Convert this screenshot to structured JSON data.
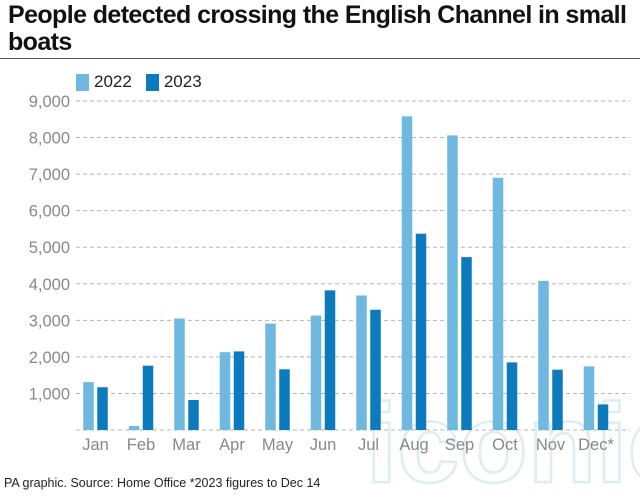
{
  "title": "People detected crossing the English Channel in small boats",
  "footer": "PA graphic. Source: Home Office *2023 figures to Dec 14",
  "watermark": "iconic",
  "colors": {
    "series_2022": "#6fb9e0",
    "series_2023": "#0b7bbd",
    "grid": "#b5b5b5",
    "axis_text": "#888888"
  },
  "chart_data": {
    "type": "bar",
    "categories": [
      "Jan",
      "Feb",
      "Mar",
      "Apr",
      "May",
      "Jun",
      "Jul",
      "Aug",
      "Sep",
      "Oct",
      "Nov",
      "Dec*"
    ],
    "series": [
      {
        "name": "2022",
        "values": [
          1310,
          110,
          3050,
          2130,
          2910,
          3130,
          3680,
          8580,
          8060,
          6900,
          4080,
          1740
        ]
      },
      {
        "name": "2023",
        "values": [
          1170,
          1760,
          820,
          2150,
          1660,
          3820,
          3290,
          5370,
          4730,
          1850,
          1650,
          700
        ]
      }
    ],
    "yticks": [
      "1,000",
      "2,000",
      "3,000",
      "4,000",
      "5,000",
      "6,000",
      "7,000",
      "8,000",
      "9,000"
    ],
    "ylim": [
      0,
      9000
    ],
    "grid": true,
    "legend": "top-left"
  }
}
